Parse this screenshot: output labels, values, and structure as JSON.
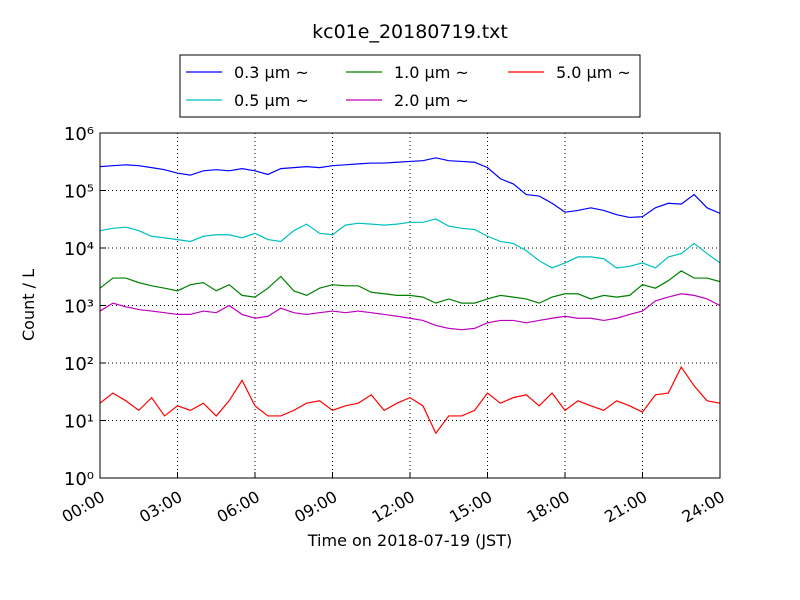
{
  "chart_data": {
    "type": "line",
    "title": "kc01e_20180719.txt",
    "x_label": "Time on 2018-07-19 (JST)",
    "y_label": "Count / L",
    "log_y": true,
    "grid": true,
    "legend": "top-center",
    "xlim": [
      0,
      24
    ],
    "xticks": [
      {
        "value": 0,
        "label": "00:00"
      },
      {
        "value": 3,
        "label": "03:00"
      },
      {
        "value": 6,
        "label": "06:00"
      },
      {
        "value": 9,
        "label": "09:00"
      },
      {
        "value": 12,
        "label": "12:00"
      },
      {
        "value": 15,
        "label": "15:00"
      },
      {
        "value": 18,
        "label": "18:00"
      },
      {
        "value": 21,
        "label": "21:00"
      },
      {
        "value": 24,
        "label": "24:00"
      }
    ],
    "ylim": [
      1,
      1000000
    ],
    "yticks": [
      {
        "value": 1,
        "label": "10⁰"
      },
      {
        "value": 10,
        "label": "10¹"
      },
      {
        "value": 100,
        "label": "10²"
      },
      {
        "value": 1000,
        "label": "10³"
      },
      {
        "value": 10000,
        "label": "10⁴"
      },
      {
        "value": 100000,
        "label": "10⁵"
      },
      {
        "value": 1000000,
        "label": "10⁶"
      }
    ],
    "x": [
      0,
      0.5,
      1,
      1.5,
      2,
      2.5,
      3,
      3.5,
      4,
      4.5,
      5,
      5.5,
      6,
      6.5,
      7,
      7.5,
      8,
      8.5,
      9,
      9.5,
      10,
      10.5,
      11,
      11.5,
      12,
      12.5,
      13,
      13.5,
      14,
      14.5,
      15,
      15.5,
      16,
      16.5,
      17,
      17.5,
      18,
      18.5,
      19,
      19.5,
      20,
      20.5,
      21,
      21.5,
      22,
      22.5,
      23,
      23.5,
      24
    ],
    "series": [
      {
        "name": "0.3 μm ~",
        "color": "#0000ff",
        "values": [
          260000,
          270000,
          280000,
          270000,
          250000,
          230000,
          200000,
          185000,
          220000,
          230000,
          220000,
          240000,
          220000,
          190000,
          240000,
          250000,
          260000,
          250000,
          270000,
          280000,
          290000,
          300000,
          300000,
          310000,
          320000,
          330000,
          370000,
          330000,
          320000,
          310000,
          250000,
          160000,
          130000,
          85000,
          80000,
          60000,
          42000,
          45000,
          50000,
          45000,
          38000,
          34000,
          35000,
          50000,
          60000,
          58000,
          85000,
          50000,
          40000
        ]
      },
      {
        "name": "0.5 μm ~",
        "color": "#00bfbf",
        "values": [
          20000,
          22000,
          23000,
          20000,
          16000,
          15000,
          14000,
          13000,
          16000,
          17000,
          17000,
          15000,
          18000,
          14000,
          13000,
          20000,
          26000,
          18000,
          17000,
          25000,
          27000,
          26000,
          25000,
          26000,
          28000,
          28000,
          32000,
          24000,
          22000,
          21000,
          16000,
          13000,
          12000,
          9000,
          6000,
          4500,
          5500,
          7000,
          7000,
          6500,
          4500,
          4800,
          5500,
          4500,
          7000,
          8000,
          12000,
          8000,
          5500
        ]
      },
      {
        "name": "1.0 μm ~",
        "color": "#008000",
        "values": [
          2000,
          3000,
          3000,
          2500,
          2200,
          2000,
          1800,
          2300,
          2500,
          1800,
          2300,
          1500,
          1400,
          2000,
          3200,
          1800,
          1500,
          2000,
          2300,
          2200,
          2200,
          1700,
          1600,
          1500,
          1500,
          1400,
          1100,
          1300,
          1100,
          1100,
          1300,
          1500,
          1400,
          1300,
          1100,
          1400,
          1600,
          1600,
          1300,
          1500,
          1400,
          1500,
          2300,
          2000,
          2700,
          4000,
          3000,
          3000,
          2600
        ]
      },
      {
        "name": "2.0 μm ~",
        "color": "#bf00bf",
        "values": [
          800,
          1100,
          950,
          850,
          800,
          750,
          700,
          700,
          800,
          750,
          1000,
          700,
          600,
          650,
          900,
          750,
          700,
          750,
          800,
          750,
          800,
          750,
          700,
          650,
          600,
          550,
          450,
          400,
          380,
          400,
          500,
          550,
          550,
          500,
          550,
          600,
          650,
          600,
          600,
          550,
          600,
          700,
          800,
          1200,
          1400,
          1600,
          1500,
          1300,
          1000
        ]
      },
      {
        "name": "5.0 μm ~",
        "color": "#ff0000",
        "values": [
          20,
          30,
          22,
          15,
          25,
          12,
          18,
          15,
          20,
          12,
          22,
          50,
          18,
          12,
          12,
          15,
          20,
          22,
          15,
          18,
          20,
          28,
          15,
          20,
          25,
          18,
          6,
          12,
          12,
          15,
          30,
          20,
          25,
          28,
          18,
          30,
          15,
          22,
          18,
          15,
          22,
          18,
          14,
          28,
          30,
          85,
          40,
          22,
          20
        ]
      }
    ]
  }
}
